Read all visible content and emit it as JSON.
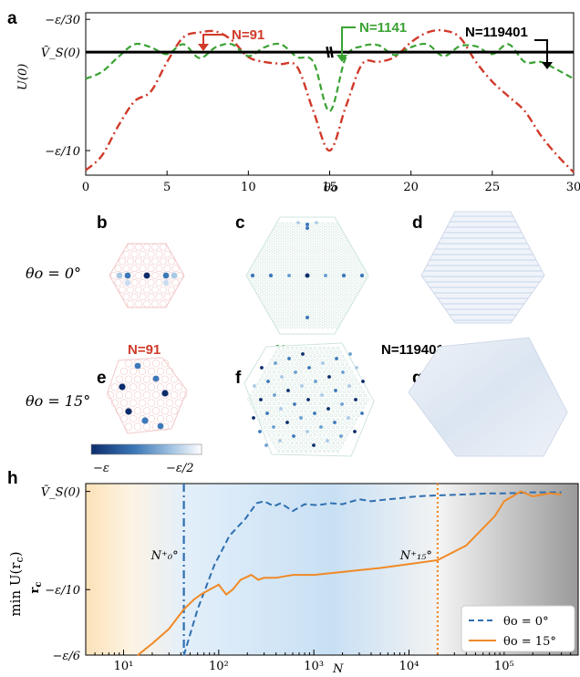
{
  "panels": {
    "a": "a",
    "b": "b",
    "c": "c",
    "d": "d",
    "e": "e",
    "f": "f",
    "g": "g",
    "h": "h"
  },
  "row_labels": {
    "theta0": "θo = 0°",
    "theta15": "θo = 15°"
  },
  "n_labels": {
    "n91": "N=91",
    "n1141": "N=1141",
    "n119401": "N=119401"
  },
  "colors": {
    "n91": "#d03a2a",
    "n1141": "#3aa233",
    "n119401": "#000000",
    "blue": "#2f6fb0",
    "orange": "#f08a26"
  },
  "colorbar": {
    "left": "−ε",
    "right": "−ε/2"
  },
  "chart_data": [
    {
      "type": "line",
      "panel": "a",
      "xlabel": "θo",
      "ylabel": "U(0)",
      "xlim": [
        0,
        30
      ],
      "x_ticks": [
        "0",
        "5",
        "10",
        "15",
        "20",
        "25",
        "30"
      ],
      "y_ticks": [
        "−ε/30",
        "Ṽ_S(0)",
        "−ε/10"
      ],
      "y_tick_values": [
        0.0333,
        0,
        -0.1
      ],
      "ylim": [
        -0.125,
        0.04
      ],
      "series": [
        {
          "name": "N=91",
          "style": "dash-dot",
          "x": [
            0,
            1,
            2,
            3,
            4,
            5,
            6,
            7,
            8,
            9,
            10,
            11,
            12,
            13,
            14,
            15,
            16,
            17,
            18,
            19,
            20,
            21,
            22,
            23,
            24,
            25,
            26,
            27,
            28,
            29,
            30
          ],
          "y": [
            -0.12,
            -0.105,
            -0.075,
            -0.05,
            -0.04,
            -0.01,
            0.015,
            0.02,
            0.021,
            0.012,
            -0.005,
            -0.01,
            -0.012,
            -0.015,
            -0.06,
            -0.1,
            -0.055,
            -0.012,
            -0.01,
            -0.005,
            0.01,
            0.02,
            0.022,
            0.015,
            -0.01,
            -0.03,
            -0.045,
            -0.06,
            -0.085,
            -0.105,
            -0.122
          ]
        },
        {
          "name": "N=1141",
          "style": "dashed",
          "x": [
            0,
            1,
            2,
            3,
            4,
            5,
            6,
            7,
            8,
            9,
            10,
            11,
            12,
            13,
            14,
            15,
            16,
            17,
            18,
            19,
            20,
            21,
            22,
            23,
            24,
            25,
            26,
            27,
            28,
            29,
            30
          ],
          "y": [
            -0.027,
            -0.02,
            -0.005,
            0.008,
            0.005,
            -0.002,
            0.008,
            -0.006,
            0.005,
            0.008,
            -0.004,
            0.005,
            0.008,
            -0.005,
            -0.01,
            -0.06,
            -0.005,
            0.006,
            0.007,
            -0.003,
            0.005,
            0.008,
            -0.004,
            0.006,
            0.006,
            -0.002,
            0.008,
            -0.01,
            -0.01,
            -0.018,
            -0.027
          ]
        },
        {
          "name": "N=119401",
          "style": "solid",
          "x": [
            0,
            30
          ],
          "y": [
            0,
            0
          ]
        }
      ]
    },
    {
      "type": "line",
      "panel": "h",
      "xlabel": "N",
      "ylabel": "min U(r_c) over r_c",
      "xscale": "log",
      "xlim": [
        4,
        600000
      ],
      "x_ticks": [
        "10¹",
        "10²",
        "10³",
        "10⁴",
        "10⁵"
      ],
      "y_ticks": [
        "Ṽ_S(0)",
        "−ε/10",
        "−ε/6"
      ],
      "y_tick_values": [
        0,
        -0.1,
        -0.1667
      ],
      "ylim": [
        -0.1667,
        0.008
      ],
      "vlines": [
        {
          "label": "N⁺₀°",
          "x": 43,
          "color": "#2f6fb0",
          "style": "dash-dot"
        },
        {
          "label": "N⁺₁₅°",
          "x": 20000,
          "color": "#f08a26",
          "style": "dotted"
        }
      ],
      "legend": {
        "position": "bottom-right",
        "entries": [
          "θo = 0°",
          "θo = 15°"
        ]
      },
      "series": [
        {
          "name": "θo = 0°",
          "style": "dashed",
          "color": "#2f6fb0",
          "x": [
            43,
            60,
            90,
            130,
            190,
            250,
            300,
            380,
            450,
            600,
            800,
            1100,
            1500,
            2000,
            3000,
            4000,
            6000,
            8000,
            12000,
            20000,
            40000,
            70000,
            100000,
            200000,
            400000
          ],
          "y": [
            -0.167,
            -0.12,
            -0.075,
            -0.045,
            -0.028,
            -0.012,
            -0.01,
            -0.015,
            -0.012,
            -0.02,
            -0.013,
            -0.014,
            -0.012,
            -0.013,
            -0.008,
            -0.01,
            -0.008,
            -0.007,
            -0.005,
            -0.004,
            -0.003,
            -0.002,
            -0.002,
            -0.001,
            -0.001
          ]
        },
        {
          "name": "θo = 15°",
          "style": "solid",
          "color": "#f08a26",
          "x": [
            14,
            20,
            30,
            43,
            55,
            65,
            80,
            100,
            120,
            140,
            170,
            220,
            260,
            300,
            400,
            600,
            1000,
            2000,
            5000,
            10000,
            20000,
            40000,
            80000,
            100000,
            150000,
            200000,
            300000,
            400000
          ],
          "y": [
            -0.167,
            -0.155,
            -0.14,
            -0.12,
            -0.11,
            -0.105,
            -0.1,
            -0.095,
            -0.105,
            -0.1,
            -0.09,
            -0.085,
            -0.09,
            -0.088,
            -0.088,
            -0.085,
            -0.085,
            -0.082,
            -0.078,
            -0.074,
            -0.07,
            -0.055,
            -0.025,
            -0.01,
            0,
            -0.005,
            -0.002,
            -0.003
          ]
        }
      ]
    }
  ]
}
